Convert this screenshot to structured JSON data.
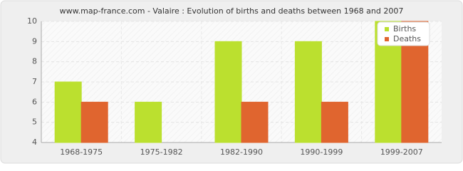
{
  "chart_data": {
    "type": "bar",
    "title": "www.map-france.com - Valaire : Evolution of births and deaths between 1968 and 2007",
    "categories": [
      "1968-1975",
      "1975-1982",
      "1982-1990",
      "1990-1999",
      "1999-2007"
    ],
    "series": [
      {
        "name": "Births",
        "color": "#bbe02f",
        "values": [
          7,
          6,
          9,
          9,
          10
        ]
      },
      {
        "name": "Deaths",
        "color": "#e0652f",
        "values": [
          6,
          4,
          6,
          6,
          10
        ]
      }
    ],
    "ylim": [
      4,
      10
    ],
    "yticks": [
      4,
      5,
      6,
      7,
      8,
      9,
      10
    ],
    "grid": true,
    "legend": "top-right"
  }
}
